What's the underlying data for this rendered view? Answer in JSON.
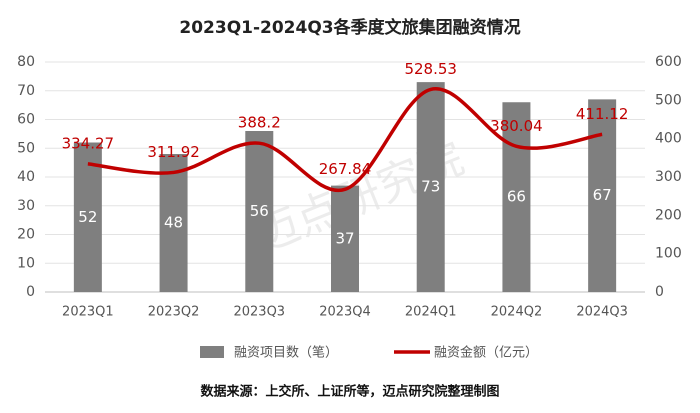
{
  "chart_data": {
    "type": "combo",
    "title": "2023Q1-2024Q3各季度文旅集团融资情况",
    "categories": [
      "2023Q1",
      "2023Q2",
      "2023Q3",
      "2023Q4",
      "2024Q1",
      "2024Q2",
      "2024Q3"
    ],
    "series": [
      {
        "name": "融资项目数（笔）",
        "type": "bar",
        "color": "#7f7f7f",
        "values": [
          52,
          48,
          56,
          37,
          73,
          66,
          67
        ]
      },
      {
        "name": "融资金额（亿元）",
        "type": "line",
        "axis": "y2",
        "color": "#c00000",
        "values": [
          334.27,
          311.92,
          388.2,
          267.84,
          528.53,
          380.04,
          411.12
        ],
        "value_labels": [
          "334.27",
          "311.92",
          "388.2",
          "267.84",
          "528.53",
          "380.04",
          "411.12"
        ]
      }
    ],
    "ylim": [
      0,
      80
    ],
    "yticks": [
      0,
      10,
      20,
      30,
      40,
      50,
      60,
      70,
      80
    ],
    "y2lim": [
      0,
      600
    ],
    "y2ticks": [
      0,
      100,
      200,
      300,
      400,
      500,
      600
    ],
    "grid": true,
    "legend": "bottom",
    "source": "数据来源：上交所、上证所等，迈点研究院整理制图",
    "watermark": "迈点研究院"
  }
}
